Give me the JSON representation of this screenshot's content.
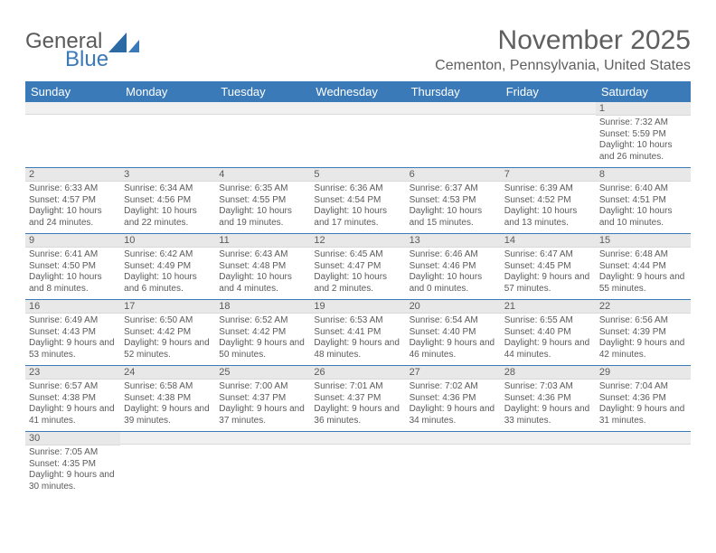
{
  "logo": {
    "text1": "General",
    "text2": "Blue"
  },
  "title": "November 2025",
  "location": "Cementon, Pennsylvania, United States",
  "colors": {
    "header_bar": "#3a7ab8",
    "daynum_bg": "#e8e8e8",
    "text": "#5a5a5a",
    "row_divider": "#3a7ab8",
    "background": "#ffffff"
  },
  "weekdays": [
    "Sunday",
    "Monday",
    "Tuesday",
    "Wednesday",
    "Thursday",
    "Friday",
    "Saturday"
  ],
  "weeks": [
    [
      null,
      null,
      null,
      null,
      null,
      null,
      {
        "n": "1",
        "sunrise": "7:32 AM",
        "sunset": "5:59 PM",
        "daylight": "10 hours and 26 minutes."
      }
    ],
    [
      {
        "n": "2",
        "sunrise": "6:33 AM",
        "sunset": "4:57 PM",
        "daylight": "10 hours and 24 minutes."
      },
      {
        "n": "3",
        "sunrise": "6:34 AM",
        "sunset": "4:56 PM",
        "daylight": "10 hours and 22 minutes."
      },
      {
        "n": "4",
        "sunrise": "6:35 AM",
        "sunset": "4:55 PM",
        "daylight": "10 hours and 19 minutes."
      },
      {
        "n": "5",
        "sunrise": "6:36 AM",
        "sunset": "4:54 PM",
        "daylight": "10 hours and 17 minutes."
      },
      {
        "n": "6",
        "sunrise": "6:37 AM",
        "sunset": "4:53 PM",
        "daylight": "10 hours and 15 minutes."
      },
      {
        "n": "7",
        "sunrise": "6:39 AM",
        "sunset": "4:52 PM",
        "daylight": "10 hours and 13 minutes."
      },
      {
        "n": "8",
        "sunrise": "6:40 AM",
        "sunset": "4:51 PM",
        "daylight": "10 hours and 10 minutes."
      }
    ],
    [
      {
        "n": "9",
        "sunrise": "6:41 AM",
        "sunset": "4:50 PM",
        "daylight": "10 hours and 8 minutes."
      },
      {
        "n": "10",
        "sunrise": "6:42 AM",
        "sunset": "4:49 PM",
        "daylight": "10 hours and 6 minutes."
      },
      {
        "n": "11",
        "sunrise": "6:43 AM",
        "sunset": "4:48 PM",
        "daylight": "10 hours and 4 minutes."
      },
      {
        "n": "12",
        "sunrise": "6:45 AM",
        "sunset": "4:47 PM",
        "daylight": "10 hours and 2 minutes."
      },
      {
        "n": "13",
        "sunrise": "6:46 AM",
        "sunset": "4:46 PM",
        "daylight": "10 hours and 0 minutes."
      },
      {
        "n": "14",
        "sunrise": "6:47 AM",
        "sunset": "4:45 PM",
        "daylight": "9 hours and 57 minutes."
      },
      {
        "n": "15",
        "sunrise": "6:48 AM",
        "sunset": "4:44 PM",
        "daylight": "9 hours and 55 minutes."
      }
    ],
    [
      {
        "n": "16",
        "sunrise": "6:49 AM",
        "sunset": "4:43 PM",
        "daylight": "9 hours and 53 minutes."
      },
      {
        "n": "17",
        "sunrise": "6:50 AM",
        "sunset": "4:42 PM",
        "daylight": "9 hours and 52 minutes."
      },
      {
        "n": "18",
        "sunrise": "6:52 AM",
        "sunset": "4:42 PM",
        "daylight": "9 hours and 50 minutes."
      },
      {
        "n": "19",
        "sunrise": "6:53 AM",
        "sunset": "4:41 PM",
        "daylight": "9 hours and 48 minutes."
      },
      {
        "n": "20",
        "sunrise": "6:54 AM",
        "sunset": "4:40 PM",
        "daylight": "9 hours and 46 minutes."
      },
      {
        "n": "21",
        "sunrise": "6:55 AM",
        "sunset": "4:40 PM",
        "daylight": "9 hours and 44 minutes."
      },
      {
        "n": "22",
        "sunrise": "6:56 AM",
        "sunset": "4:39 PM",
        "daylight": "9 hours and 42 minutes."
      }
    ],
    [
      {
        "n": "23",
        "sunrise": "6:57 AM",
        "sunset": "4:38 PM",
        "daylight": "9 hours and 41 minutes."
      },
      {
        "n": "24",
        "sunrise": "6:58 AM",
        "sunset": "4:38 PM",
        "daylight": "9 hours and 39 minutes."
      },
      {
        "n": "25",
        "sunrise": "7:00 AM",
        "sunset": "4:37 PM",
        "daylight": "9 hours and 37 minutes."
      },
      {
        "n": "26",
        "sunrise": "7:01 AM",
        "sunset": "4:37 PM",
        "daylight": "9 hours and 36 minutes."
      },
      {
        "n": "27",
        "sunrise": "7:02 AM",
        "sunset": "4:36 PM",
        "daylight": "9 hours and 34 minutes."
      },
      {
        "n": "28",
        "sunrise": "7:03 AM",
        "sunset": "4:36 PM",
        "daylight": "9 hours and 33 minutes."
      },
      {
        "n": "29",
        "sunrise": "7:04 AM",
        "sunset": "4:36 PM",
        "daylight": "9 hours and 31 minutes."
      }
    ],
    [
      {
        "n": "30",
        "sunrise": "7:05 AM",
        "sunset": "4:35 PM",
        "daylight": "9 hours and 30 minutes."
      },
      null,
      null,
      null,
      null,
      null,
      null
    ]
  ],
  "labels": {
    "sunrise": "Sunrise: ",
    "sunset": "Sunset: ",
    "daylight": "Daylight: "
  }
}
